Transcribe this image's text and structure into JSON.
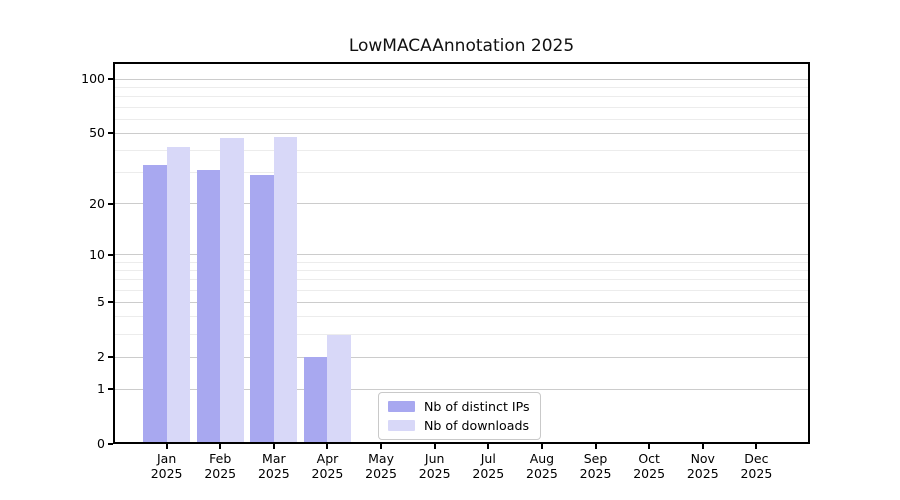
{
  "title": "LowMACAAnnotation 2025",
  "chart_data": {
    "type": "bar",
    "title": "LowMACAAnnotation 2025",
    "x_months": [
      "Jan",
      "Feb",
      "Mar",
      "Apr",
      "May",
      "Jun",
      "Jul",
      "Aug",
      "Sep",
      "Oct",
      "Nov",
      "Dec"
    ],
    "x_year": "2025",
    "y_scale": "log1p",
    "y_max": 125,
    "y_ticks_major": [
      0,
      1,
      2,
      5,
      10,
      20,
      50,
      100
    ],
    "y_ticks_minor": [
      3,
      4,
      6,
      7,
      8,
      9,
      30,
      40,
      60,
      70,
      80,
      90
    ],
    "grid": "horizontal-on",
    "legend_position": "bottom-center-inside",
    "series": [
      {
        "name": "Nb of distinct IPs",
        "color": "#a8a8f0",
        "values": [
          33,
          31,
          29,
          2,
          0,
          0,
          0,
          0,
          0,
          0,
          0,
          0
        ]
      },
      {
        "name": "Nb of downloads",
        "color": "#d8d8f8",
        "values": [
          42,
          47,
          48,
          3,
          0,
          0,
          0,
          0,
          0,
          0,
          0,
          0
        ]
      }
    ],
    "colors": {
      "axis": "#000000",
      "grid_major": "#cccccc",
      "grid_minor": "#ececec",
      "background": "#ffffff"
    }
  }
}
